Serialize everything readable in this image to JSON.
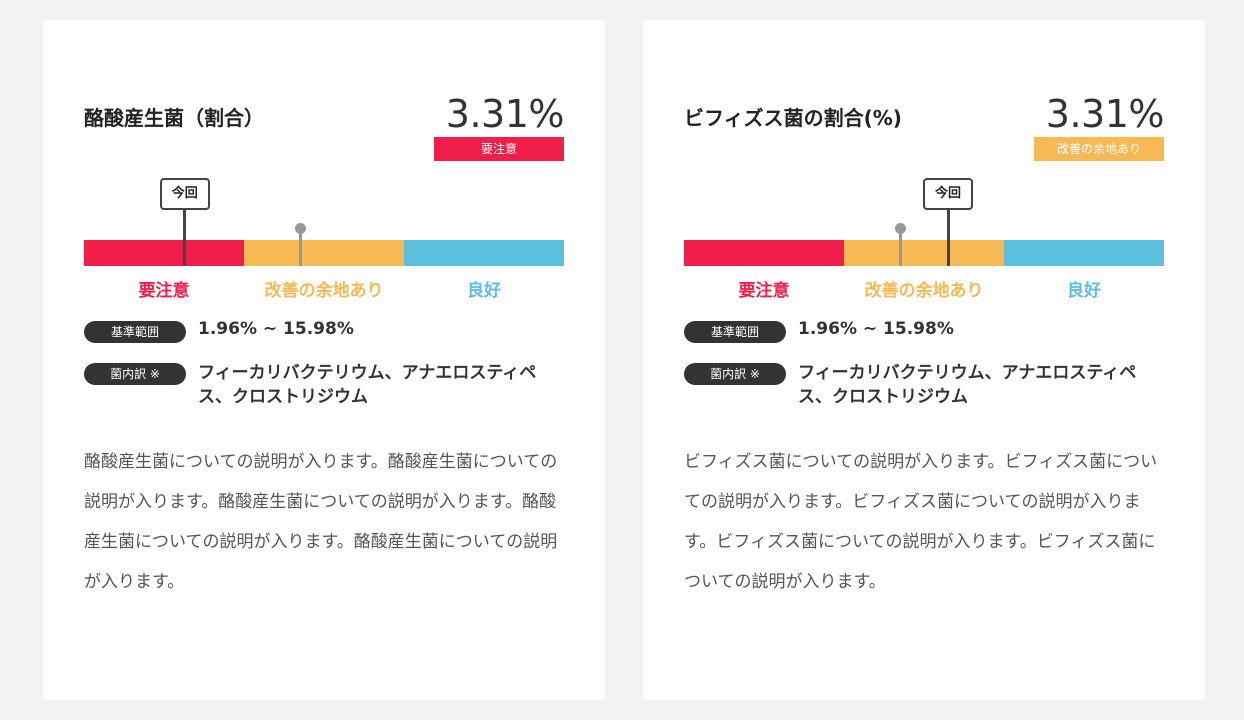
{
  "colors": {
    "warning": "#ef1e4a",
    "improve": "#f7b953",
    "good": "#5bbfde",
    "dark": "#333333"
  },
  "scale_labels": [
    "要注意",
    "改善の余地あり",
    "良好"
  ],
  "current_marker_label": "今回",
  "range_label": "基準範囲",
  "breakdown_label": "菌内訳 ※",
  "cards": [
    {
      "title": "酪酸産生菌（割合）",
      "value": "3.31%",
      "status": "要注意",
      "status_color": "#ef1e4a",
      "current_position": 0.21,
      "reference_position": 0.45,
      "range": "1.96% ~ 15.98%",
      "bacteria": "フィーカリバクテリウム、アナエロスティペス、クロストリジウム",
      "description": "酪酸産生菌についての説明が入ります。酪酸産生菌についての説明が入ります。酪酸産生菌についての説明が入ります。酪酸産生菌についての説明が入ります。酪酸産生菌についての説明が入ります。"
    },
    {
      "title": "ビフィズス菌の割合(%)",
      "value": "3.31%",
      "status": "改善の余地あり",
      "status_color": "#f7b953",
      "current_position": 0.55,
      "reference_position": 0.45,
      "range": "1.96% ~ 15.98%",
      "bacteria": "フィーカリバクテリウム、アナエロスティペス、クロストリジウム",
      "description": "ビフィズス菌についての説明が入ります。ビフィズス菌についての説明が入ります。ビフィズス菌についての説明が入ります。ビフィズス菌についての説明が入ります。ビフィズス菌についての説明が入ります。"
    }
  ]
}
